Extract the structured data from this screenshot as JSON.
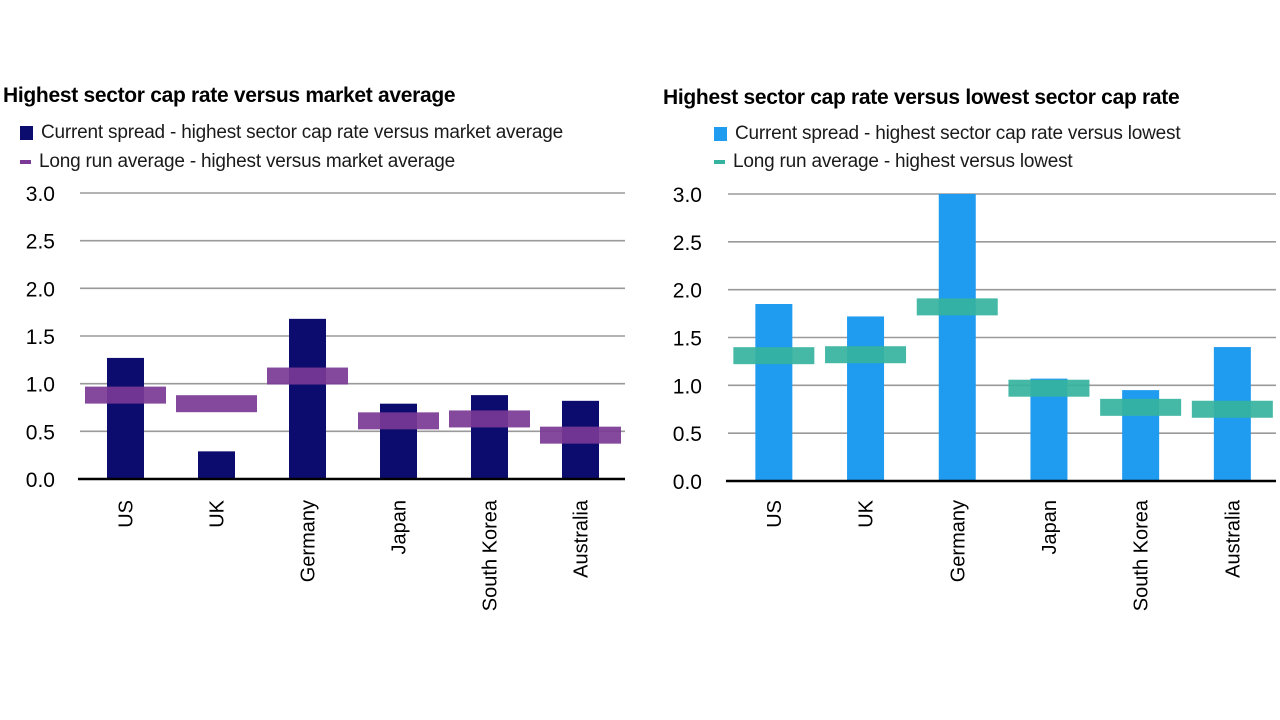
{
  "chart_data": [
    {
      "type": "bar",
      "title": "Highest sector cap rate versus market average",
      "categories": [
        "US",
        "UK",
        "Germany",
        "Japan",
        "South Korea",
        "Australia"
      ],
      "series": [
        {
          "name": "Current spread - highest sector cap rate versus market average",
          "kind": "bar",
          "color": "#0c0c6e",
          "values": [
            1.27,
            0.29,
            1.68,
            0.79,
            0.88,
            0.82
          ]
        },
        {
          "name": "Long run average - highest versus market average",
          "kind": "marker",
          "color": "#7a3a95",
          "values": [
            0.88,
            0.79,
            1.08,
            0.61,
            0.63,
            0.46
          ]
        }
      ],
      "ylim": [
        0,
        3.0
      ],
      "yticks": [
        "3.0",
        "2.5",
        "2.0",
        "1.5",
        "1.0",
        "0.5",
        "0.0"
      ],
      "ytick_values": [
        3.0,
        2.5,
        2.0,
        1.5,
        1.0,
        0.5,
        0.0
      ],
      "xlabel": "",
      "ylabel": "",
      "grid": true
    },
    {
      "type": "bar",
      "title": "Highest sector cap rate versus lowest sector cap rate",
      "categories": [
        "US",
        "UK",
        "Germany",
        "Japan",
        "South Korea",
        "Australia"
      ],
      "series": [
        {
          "name": "Current spread - highest sector cap rate versus lowest",
          "kind": "bar",
          "color": "#1f9bf0",
          "values": [
            1.85,
            1.72,
            3.0,
            1.07,
            0.95,
            1.4
          ]
        },
        {
          "name": "Long run average - highest versus lowest",
          "kind": "marker",
          "color": "#35b39e",
          "values": [
            1.31,
            1.32,
            1.82,
            0.97,
            0.77,
            0.75
          ]
        }
      ],
      "ylim": [
        0,
        3.0
      ],
      "yticks": [
        "3.0",
        "2.5",
        "2.0",
        "1.5",
        "1.0",
        "0.5",
        "0.0"
      ],
      "ytick_values": [
        3.0,
        2.5,
        2.0,
        1.5,
        1.0,
        0.5,
        0.0
      ],
      "xlabel": "",
      "ylabel": "",
      "grid": true
    }
  ]
}
